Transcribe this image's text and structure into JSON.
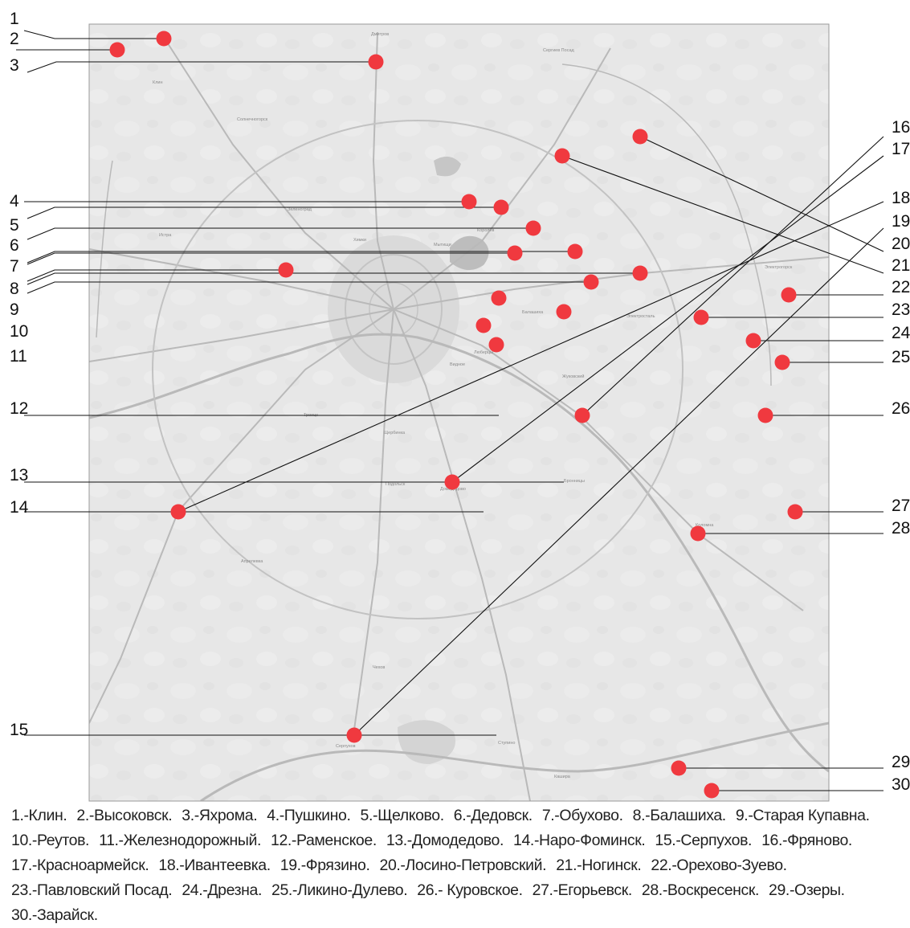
{
  "map": {
    "base_labels": [
      "Дмитров",
      "Сергиев Посад",
      "Клин",
      "Солнечногорск",
      "Зеленоград",
      "Химки",
      "Мытищи",
      "Королёв",
      "Балашиха",
      "Люберцы",
      "Подольск",
      "Щербинка",
      "Троицк",
      "Видное",
      "Бронницы",
      "Электросталь",
      "Ступино",
      "Кашира",
      "Чехов",
      "Серпухов",
      "Коломна",
      "Истра",
      "Апрелевка",
      "Жуковский",
      "Домодедово",
      "Электрогорск"
    ],
    "markers": [
      {
        "num": "1",
        "town": "Клин"
      },
      {
        "num": "2",
        "town": "Высоковск"
      },
      {
        "num": "3",
        "town": "Яхрома"
      },
      {
        "num": "4",
        "town": "Пушкино"
      },
      {
        "num": "5",
        "town": "Щелково"
      },
      {
        "num": "6",
        "town": "Дедовск"
      },
      {
        "num": "7",
        "town": "Обухово"
      },
      {
        "num": "8",
        "town": "Балашиха"
      },
      {
        "num": "9",
        "town": "Старая Купавна"
      },
      {
        "num": "10",
        "town": "Реутов"
      },
      {
        "num": "11",
        "town": "Железнодорожный"
      },
      {
        "num": "12",
        "town": "Раменское"
      },
      {
        "num": "13",
        "town": "Домодедово"
      },
      {
        "num": "14",
        "town": "Наро-Фоминск"
      },
      {
        "num": "15",
        "town": "Серпухов"
      },
      {
        "num": "16",
        "town": "Фряново"
      },
      {
        "num": "17",
        "town": "Красноармейск"
      },
      {
        "num": "18",
        "town": "Ивантеевка"
      },
      {
        "num": "19",
        "town": "Фрязино"
      },
      {
        "num": "20",
        "town": "Лосино-Петровский"
      },
      {
        "num": "21",
        "town": "Ногинск"
      },
      {
        "num": "22",
        "town": "Орехово-Зуево"
      },
      {
        "num": "23",
        "town": "Павловский Посад"
      },
      {
        "num": "24",
        "town": "Дрезна"
      },
      {
        "num": "25",
        "town": "Ликино-Дулево"
      },
      {
        "num": "26",
        "town": "Куровское"
      },
      {
        "num": "27",
        "town": "Егорьевск"
      },
      {
        "num": "28",
        "town": "Воскресенск"
      },
      {
        "num": "29",
        "town": "Озеры"
      },
      {
        "num": "30",
        "town": "Зарайск"
      }
    ],
    "colors": {
      "marker": "#f0393f",
      "map_bg": "#e9e9e9",
      "leader": "#111111"
    }
  },
  "caption": [
    "1.-Клин.",
    "2.-Высоковск.",
    "3.-Яхрома.",
    "4.-Пушкино.",
    "5.-Щелково.",
    "6.-Дедовск.",
    "7.-Обухово.",
    "8.-Балашиха.",
    "9.-Старая Купавна.",
    "10.-Реутов.",
    "11.-Железнодорожный.",
    "12.-Раменское.",
    "13.-Домодедово.",
    "14.-Наро-Фоминск.",
    "15.-Серпухов.",
    "16.-Фряново.",
    "17.-Красноармейск.",
    "18.-Ивантеевка.",
    "19.-Фрязино.",
    "20.-Лосино-Петровский.",
    "21.-Ногинск.",
    "22.-Орехово-Зуево.",
    "23.-Павловский Посад.",
    "24.-Дрезна.",
    "25.-Ликино-Дулево.",
    "26.- Куровское.",
    "27.-Егорьевск.",
    "28.-Воскресенск.",
    "29.-Озеры.",
    "30.-Зарайск."
  ]
}
